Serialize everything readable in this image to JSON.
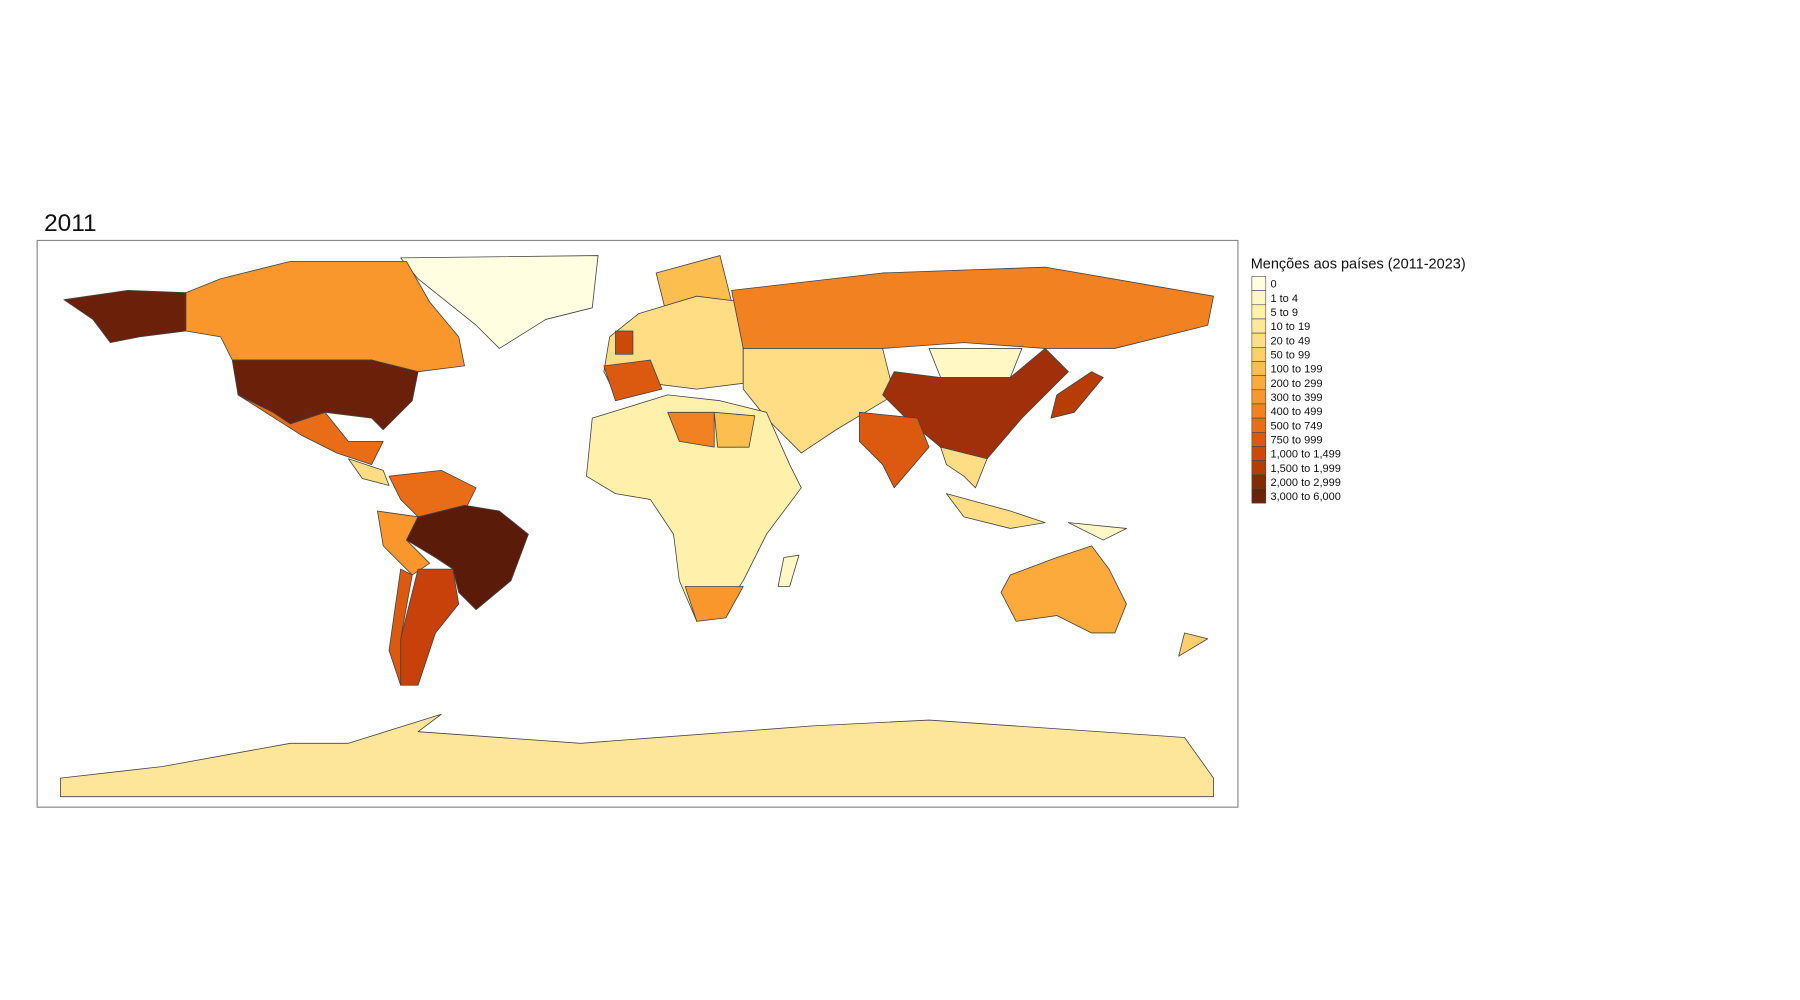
{
  "title": "2011",
  "legend": {
    "title": "Menções aos países (2011-2023)",
    "items": [
      {
        "label": "0",
        "color": "#fffee0"
      },
      {
        "label": "1 to 4",
        "color": "#fff8c4"
      },
      {
        "label": "5 to 9",
        "color": "#fff1ab"
      },
      {
        "label": "10 to 19",
        "color": "#fee898"
      },
      {
        "label": "20 to 49",
        "color": "#fedd84"
      },
      {
        "label": "50 to 99",
        "color": "#fecf6a"
      },
      {
        "label": "100 to 199",
        "color": "#fdbe50"
      },
      {
        "label": "200 to 299",
        "color": "#fcaa3c"
      },
      {
        "label": "300 to 399",
        "color": "#f9962c"
      },
      {
        "label": "400 to 499",
        "color": "#f28122"
      },
      {
        "label": "500 to 749",
        "color": "#e96d17"
      },
      {
        "label": "750 to 999",
        "color": "#dc5a0f"
      },
      {
        "label": "1,000 to 1,499",
        "color": "#cc4a09"
      },
      {
        "label": "1,500 to 1,999",
        "color": "#b73d05"
      },
      {
        "label": "2,000 to 2,999",
        "color": "#822b05"
      },
      {
        "label": "3,000 to 6,000",
        "color": "#662506"
      }
    ]
  }
}
